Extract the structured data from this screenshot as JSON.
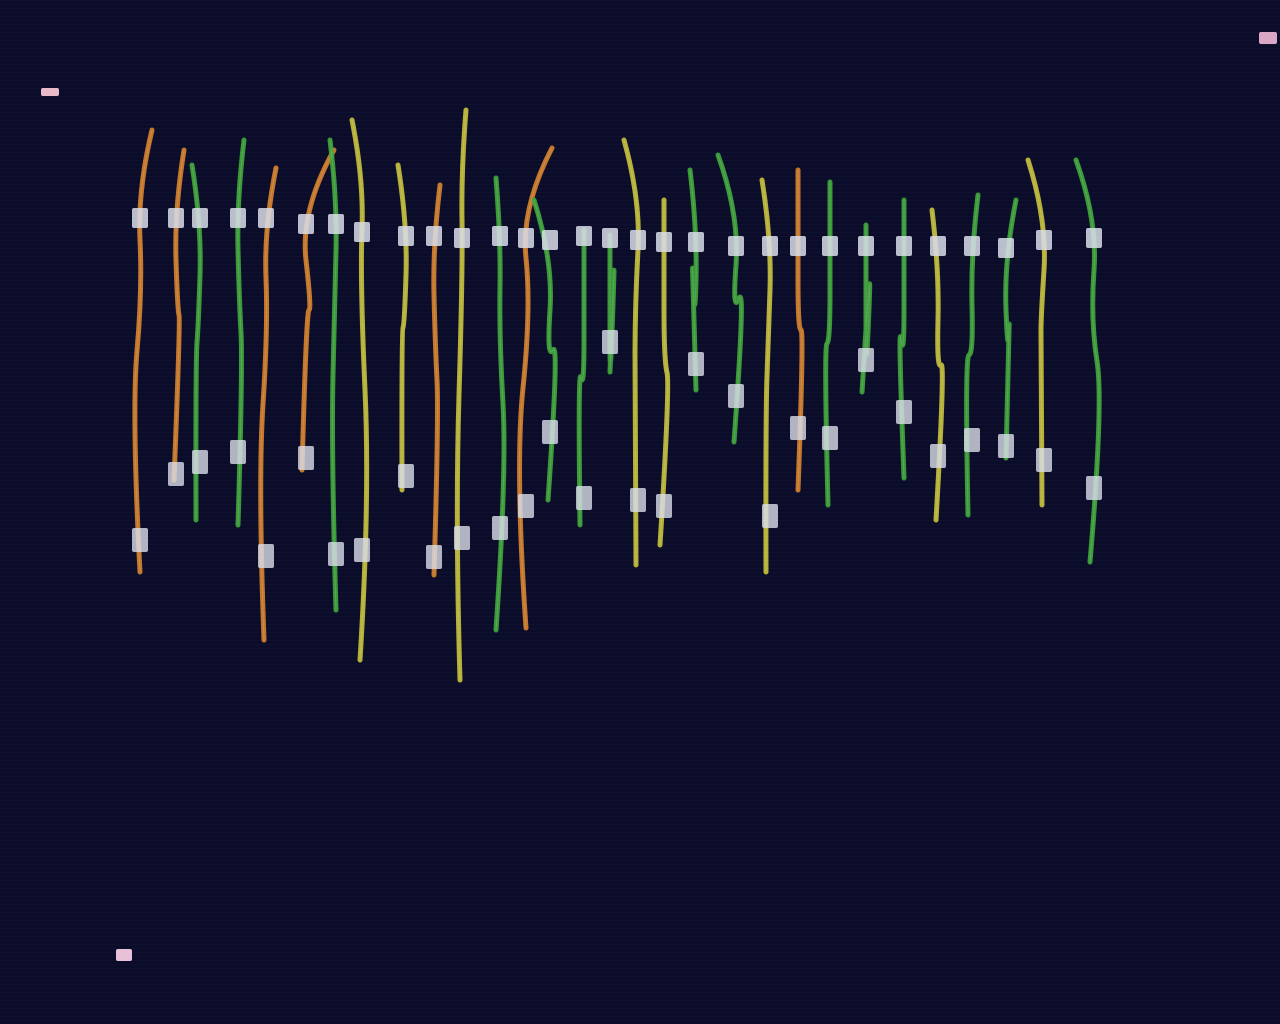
{
  "scene": {
    "subject": "leaf-segments",
    "background_color": "#0b0c2a",
    "clip_color": "#d9dde8",
    "leaf_colors": {
      "green": "#3fa83a",
      "yellow": "#c9c23a",
      "orange": "#d8822a"
    },
    "marker_colors": [
      "#e8b9c9",
      "#d9a6c6",
      "#e7c0d8"
    ],
    "leaf_count": 30
  }
}
